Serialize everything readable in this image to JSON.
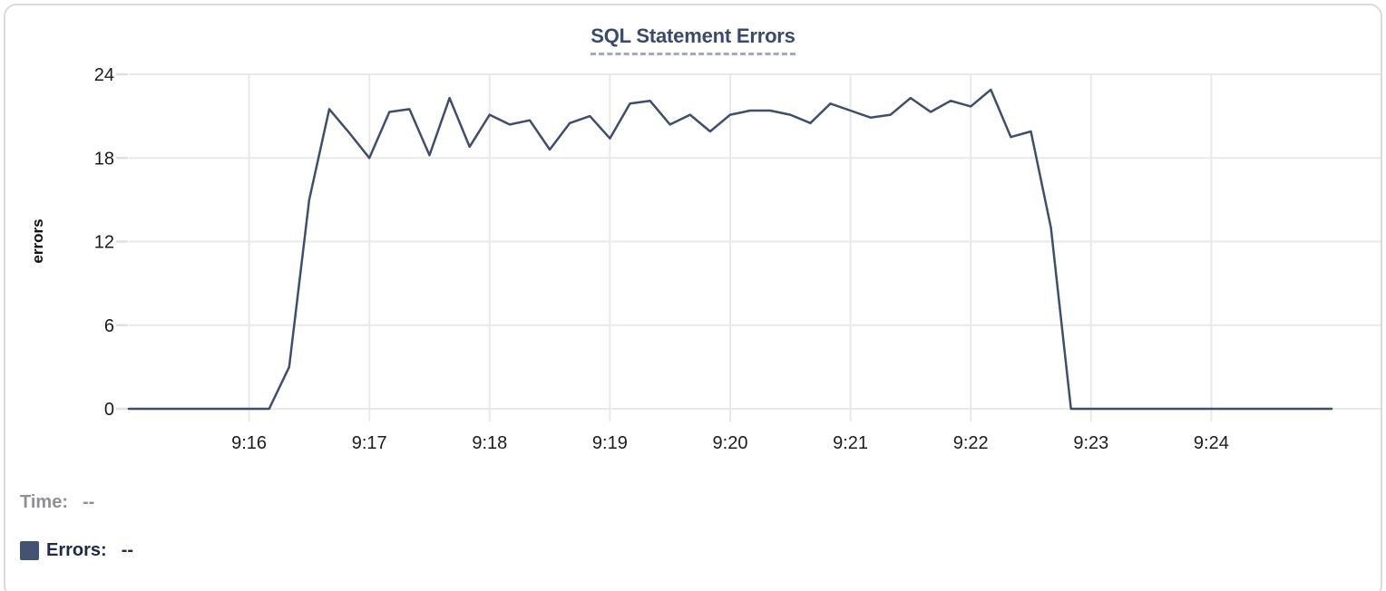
{
  "card": {
    "background": "#ffffff",
    "border_color": "#dadadc"
  },
  "chart_data": {
    "type": "line",
    "title": "SQL Statement Errors",
    "xlabel": "",
    "ylabel": "errors",
    "ylim": [
      0,
      24
    ],
    "y_ticks": [
      0,
      6,
      12,
      18,
      24
    ],
    "x_ticks": [
      "9:16",
      "9:17",
      "9:18",
      "9:19",
      "9:20",
      "9:21",
      "9:22",
      "9:23",
      "9:24"
    ],
    "x_start": "9:15:00",
    "x_end": "9:25:00",
    "sample_interval_seconds": 10,
    "grid": true,
    "legend_position": "bottom-left",
    "line_color": "#3e4e6d",
    "series": [
      {
        "name": "Errors",
        "values": [
          0,
          0,
          0,
          0,
          0,
          0,
          0,
          0,
          3,
          15,
          21.5,
          19.8,
          18,
          21.3,
          21.5,
          18.2,
          22.3,
          18.8,
          21.1,
          20.4,
          20.7,
          18.6,
          20.5,
          21,
          19.4,
          21.9,
          22.1,
          20.4,
          21.1,
          19.9,
          21.1,
          21.4,
          21.4,
          21.1,
          20.5,
          21.9,
          21.4,
          20.9,
          21.1,
          22.3,
          21.3,
          22.1,
          21.7,
          22.9,
          19.5,
          19.9,
          13,
          0,
          0,
          0,
          0,
          0,
          0,
          0,
          0,
          0,
          0,
          0,
          0,
          0,
          0
        ]
      }
    ]
  },
  "legend": {
    "time_label": "Time:",
    "time_value": "--",
    "errors_label": "Errors:",
    "errors_value": "--",
    "errors_swatch_color": "#435371"
  },
  "colors": {
    "title_text": "#3a4a6b",
    "title_underline": "#9fabc4",
    "grid_line": "#e9e9e9",
    "axis_tick_text": "#1c1c1e",
    "y_axis_title_text": "#111111",
    "time_legend_text": "#8e9093",
    "errors_legend_text": "#1e2a4d"
  }
}
